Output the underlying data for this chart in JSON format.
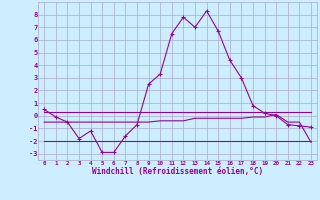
{
  "xlabel": "Windchill (Refroidissement éolien,°C)",
  "x": [
    0,
    1,
    2,
    3,
    4,
    5,
    6,
    7,
    8,
    9,
    10,
    11,
    12,
    13,
    14,
    15,
    16,
    17,
    18,
    19,
    20,
    21,
    22,
    23
  ],
  "line1_y": [
    0.5,
    -0.1,
    -0.5,
    -1.8,
    -1.2,
    -2.9,
    -2.9,
    -1.6,
    -0.7,
    2.5,
    3.3,
    6.5,
    7.8,
    7.0,
    8.3,
    6.7,
    4.4,
    3.0,
    0.8,
    0.2,
    0.0,
    -0.7,
    -0.8,
    -0.9
  ],
  "line2_y": [
    0.3,
    0.3,
    0.3,
    0.3,
    0.3,
    0.3,
    0.3,
    0.3,
    0.3,
    0.3,
    0.3,
    0.3,
    0.3,
    0.3,
    0.3,
    0.3,
    0.3,
    0.3,
    0.3,
    0.3,
    0.3,
    0.3,
    0.3,
    0.3
  ],
  "line3_y": [
    -0.5,
    -0.5,
    -0.5,
    -0.5,
    -0.5,
    -0.5,
    -0.5,
    -0.5,
    -0.5,
    -0.5,
    -0.4,
    -0.4,
    -0.4,
    -0.2,
    -0.2,
    -0.2,
    -0.2,
    -0.2,
    -0.1,
    -0.1,
    0.1,
    -0.5,
    -0.5,
    -2.1
  ],
  "line4_y": [
    -2.0,
    -2.0,
    -2.0,
    -2.0,
    -2.0,
    -2.0,
    -2.0,
    -2.0,
    -2.0,
    -2.0,
    -2.0,
    -2.0,
    -2.0,
    -2.0,
    -2.0,
    -2.0,
    -2.0,
    -2.0,
    -2.0,
    -2.0,
    -2.0,
    -2.0,
    -2.0,
    -2.0
  ],
  "line_color": "#990099",
  "bg_color": "#cceeff",
  "grid_color": "#aaaacc",
  "ylim": [
    -3.5,
    9.0
  ],
  "xlim": [
    -0.5,
    23.5
  ],
  "yticks": [
    -3,
    -2,
    -1,
    0,
    1,
    2,
    3,
    4,
    5,
    6,
    7,
    8
  ],
  "xticks": [
    0,
    1,
    2,
    3,
    4,
    5,
    6,
    7,
    8,
    9,
    10,
    11,
    12,
    13,
    14,
    15,
    16,
    17,
    18,
    19,
    20,
    21,
    22,
    23
  ]
}
